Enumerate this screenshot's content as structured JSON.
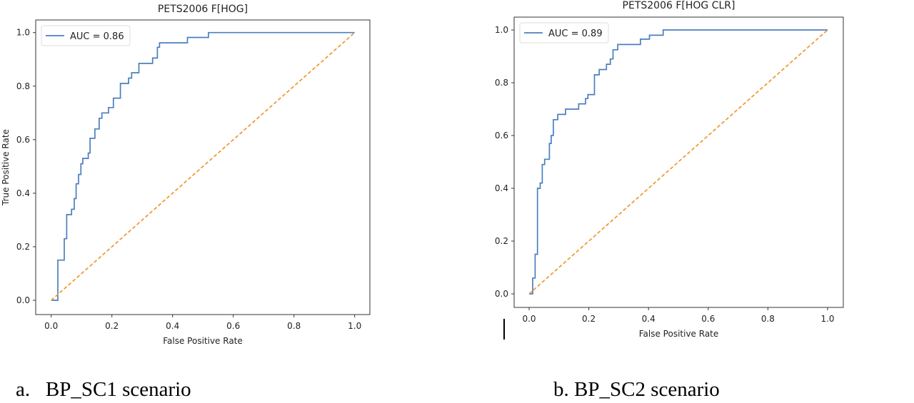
{
  "chart_data": [
    {
      "type": "line",
      "title": "PETS2006 F[HOG]",
      "xlabel": "False Positive Rate",
      "ylabel": "True Positive Rate",
      "xlim": [
        0,
        1
      ],
      "ylim": [
        0,
        1
      ],
      "xticks": [
        "0.0",
        "0.2",
        "0.4",
        "0.6",
        "0.8",
        "1.0"
      ],
      "yticks": [
        "0.0",
        "0.2",
        "0.4",
        "0.6",
        "0.8",
        "1.0"
      ],
      "grid": false,
      "legend_position": "top-left",
      "caption": "a.   BP_SC1 scenario",
      "series": [
        {
          "name": "AUC = 0.86",
          "color": "#4c7fbd",
          "style": "step",
          "x": [
            0,
            0.022,
            0.022,
            0.043,
            0.043,
            0.051,
            0.051,
            0.067,
            0.067,
            0.076,
            0.076,
            0.082,
            0.082,
            0.09,
            0.09,
            0.098,
            0.098,
            0.104,
            0.104,
            0.122,
            0.122,
            0.128,
            0.128,
            0.144,
            0.144,
            0.158,
            0.158,
            0.167,
            0.167,
            0.189,
            0.189,
            0.205,
            0.205,
            0.228,
            0.228,
            0.255,
            0.255,
            0.265,
            0.265,
            0.289,
            0.289,
            0.334,
            0.334,
            0.35,
            0.35,
            0.357,
            0.357,
            0.449,
            0.449,
            0.518,
            0.518,
            1.0
          ],
          "y": [
            0,
            0,
            0.15,
            0.15,
            0.23,
            0.23,
            0.32,
            0.32,
            0.34,
            0.34,
            0.38,
            0.38,
            0.435,
            0.435,
            0.47,
            0.47,
            0.51,
            0.51,
            0.53,
            0.53,
            0.55,
            0.55,
            0.605,
            0.605,
            0.64,
            0.64,
            0.68,
            0.68,
            0.7,
            0.7,
            0.72,
            0.72,
            0.755,
            0.755,
            0.81,
            0.81,
            0.83,
            0.83,
            0.85,
            0.85,
            0.885,
            0.885,
            0.905,
            0.905,
            0.945,
            0.945,
            0.962,
            0.962,
            0.982,
            0.982,
            1.0,
            1.0
          ]
        },
        {
          "color": "#f0962e",
          "style": "dashed",
          "x": [
            0,
            1
          ],
          "y": [
            0,
            1
          ]
        }
      ]
    },
    {
      "type": "line",
      "title": "PETS2006 F[HOG CLR]",
      "xlabel": "False Positive Rate",
      "ylabel": "",
      "xlim": [
        0,
        1
      ],
      "ylim": [
        0,
        1
      ],
      "xticks": [
        "0.0",
        "0.2",
        "0.4",
        "0.6",
        "0.8",
        "1.0"
      ],
      "yticks": [
        "0.0",
        "0.2",
        "0.4",
        "0.6",
        "0.8",
        "1.0"
      ],
      "grid": false,
      "legend_position": "top-left",
      "caption": "b. BP_SC2 scenario",
      "series": [
        {
          "name": "AUC = 0.89",
          "color": "#4c7fbd",
          "style": "step",
          "x": [
            0,
            0.012,
            0.012,
            0.02,
            0.02,
            0.028,
            0.028,
            0.037,
            0.037,
            0.044,
            0.044,
            0.052,
            0.052,
            0.068,
            0.068,
            0.074,
            0.074,
            0.081,
            0.081,
            0.096,
            0.096,
            0.122,
            0.122,
            0.166,
            0.166,
            0.189,
            0.189,
            0.197,
            0.197,
            0.219,
            0.219,
            0.235,
            0.235,
            0.259,
            0.259,
            0.272,
            0.272,
            0.281,
            0.281,
            0.297,
            0.297,
            0.373,
            0.373,
            0.403,
            0.403,
            0.449,
            0.449,
            1.0
          ],
          "y": [
            0,
            0,
            0.06,
            0.06,
            0.15,
            0.15,
            0.4,
            0.4,
            0.42,
            0.42,
            0.49,
            0.49,
            0.51,
            0.51,
            0.57,
            0.57,
            0.6,
            0.6,
            0.66,
            0.66,
            0.68,
            0.68,
            0.7,
            0.7,
            0.72,
            0.72,
            0.74,
            0.74,
            0.755,
            0.755,
            0.83,
            0.83,
            0.85,
            0.85,
            0.87,
            0.87,
            0.89,
            0.89,
            0.925,
            0.925,
            0.945,
            0.945,
            0.965,
            0.965,
            0.98,
            0.98,
            1.0,
            1.0
          ]
        },
        {
          "color": "#f0962e",
          "style": "dashed",
          "x": [
            0,
            1
          ],
          "y": [
            0,
            1
          ]
        }
      ]
    }
  ]
}
